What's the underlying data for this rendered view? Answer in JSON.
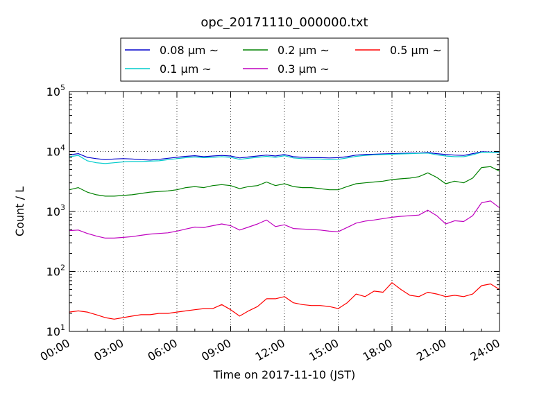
{
  "chart_data": {
    "type": "line",
    "title": "opc_20171110_000000.txt",
    "xlabel": "Time on 2017-11-10 (JST)",
    "ylabel": "Count / L",
    "yscale": "log",
    "xlim": [
      "00:00",
      "24:00"
    ],
    "ylim": [
      10,
      100000
    ],
    "x_tick_labels": [
      "00:00",
      "03:00",
      "06:00",
      "09:00",
      "12:00",
      "15:00",
      "18:00",
      "21:00",
      "24:00"
    ],
    "y_tick_labels": [
      {
        "base": "10",
        "exp": "1"
      },
      {
        "base": "10",
        "exp": "2"
      },
      {
        "base": "10",
        "exp": "3"
      },
      {
        "base": "10",
        "exp": "4"
      },
      {
        "base": "10",
        "exp": "5"
      }
    ],
    "grid": true,
    "legend_position": "top-center",
    "x_hours": [
      0,
      0.5,
      1,
      1.5,
      2,
      2.5,
      3,
      3.5,
      4,
      4.5,
      5,
      5.5,
      6,
      6.5,
      7,
      7.5,
      8,
      8.5,
      9,
      9.5,
      10,
      10.5,
      11,
      11.5,
      12,
      12.5,
      13,
      13.5,
      14,
      14.5,
      15,
      15.5,
      16,
      16.5,
      17,
      17.5,
      18,
      18.5,
      19,
      19.5,
      20,
      20.5,
      21,
      21.5,
      22,
      22.5,
      23,
      23.5,
      24
    ],
    "series": [
      {
        "name": "0.08 μm ~",
        "color": "#0000cc",
        "values": [
          8800,
          9200,
          8000,
          7600,
          7300,
          7500,
          7600,
          7500,
          7300,
          7200,
          7400,
          7700,
          8000,
          8300,
          8500,
          8200,
          8400,
          8600,
          8400,
          7800,
          8100,
          8400,
          8700,
          8400,
          8900,
          8200,
          8000,
          7900,
          7900,
          7800,
          7900,
          8200,
          8700,
          8900,
          9000,
          9100,
          9200,
          9300,
          9400,
          9400,
          9600,
          9200,
          8900,
          8700,
          8600,
          9200,
          9900,
          9800,
          9700
        ]
      },
      {
        "name": "0.1 μm ~",
        "color": "#00cccc",
        "values": [
          8200,
          8600,
          7000,
          6500,
          6300,
          6500,
          6700,
          6800,
          6800,
          6900,
          7000,
          7300,
          7600,
          7900,
          8100,
          7900,
          8000,
          8200,
          8000,
          7400,
          7700,
          8000,
          8300,
          8000,
          8500,
          7800,
          7600,
          7500,
          7500,
          7300,
          7400,
          7800,
          8300,
          8600,
          8800,
          8900,
          9000,
          9100,
          9200,
          9300,
          9400,
          8800,
          8400,
          8200,
          8200,
          8800,
          9700,
          9700,
          9600
        ]
      },
      {
        "name": "0.2 μm ~",
        "color": "#008000",
        "values": [
          2300,
          2500,
          2100,
          1900,
          1800,
          1800,
          1850,
          1900,
          2000,
          2100,
          2150,
          2200,
          2300,
          2500,
          2600,
          2500,
          2700,
          2800,
          2700,
          2400,
          2600,
          2700,
          3100,
          2700,
          2900,
          2600,
          2500,
          2500,
          2400,
          2300,
          2300,
          2600,
          2900,
          3000,
          3100,
          3200,
          3400,
          3500,
          3600,
          3800,
          4400,
          3700,
          2900,
          3200,
          3000,
          3600,
          5400,
          5600,
          4700
        ]
      },
      {
        "name": "0.3 μm ~",
        "color": "#bf00bf",
        "values": [
          480,
          490,
          430,
          390,
          360,
          360,
          370,
          380,
          400,
          420,
          430,
          440,
          470,
          510,
          550,
          540,
          580,
          620,
          580,
          490,
          550,
          620,
          720,
          560,
          600,
          520,
          510,
          500,
          490,
          470,
          460,
          540,
          640,
          690,
          720,
          760,
          800,
          830,
          850,
          870,
          1050,
          850,
          620,
          700,
          680,
          850,
          1400,
          1500,
          1150
        ]
      },
      {
        "name": "0.5 μm ~",
        "color": "#ff0000",
        "values": [
          21,
          22,
          21,
          19,
          17,
          16,
          17,
          18,
          19,
          19,
          20,
          20,
          21,
          22,
          23,
          24,
          24,
          28,
          23,
          18,
          22,
          26,
          35,
          35,
          38,
          30,
          28,
          27,
          27,
          26,
          24,
          30,
          42,
          38,
          47,
          45,
          65,
          50,
          40,
          38,
          45,
          42,
          38,
          40,
          38,
          42,
          58,
          62,
          50
        ]
      }
    ]
  }
}
